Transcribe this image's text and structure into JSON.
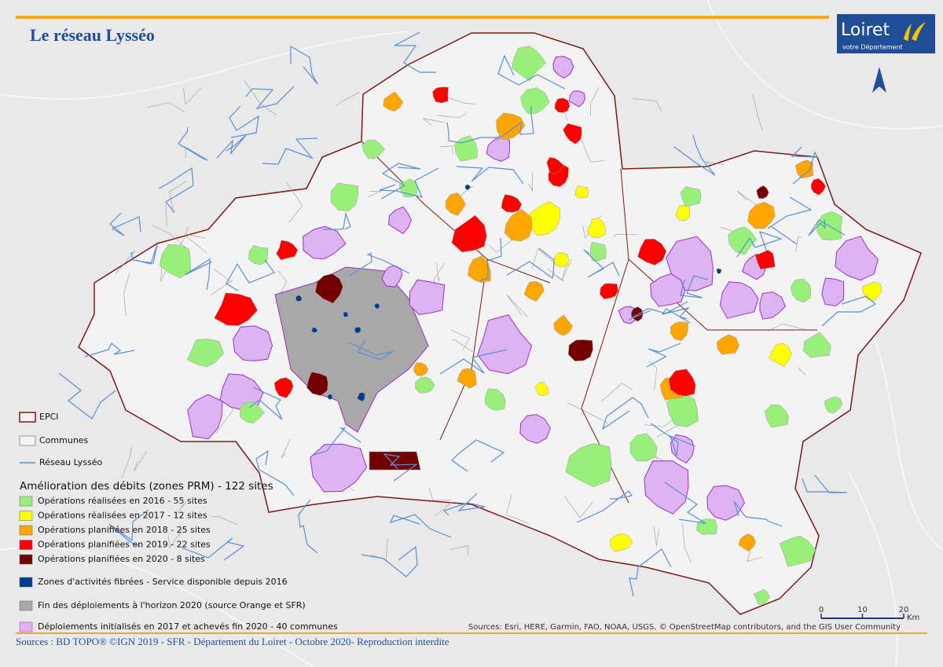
{
  "header": {
    "title": "Le réseau Lysséo",
    "logo": "Loiret",
    "logo_subtitle": "votre Département"
  },
  "legend": {
    "boundaries": [
      {
        "label": "EPCI",
        "color": "#7a1a1a"
      },
      {
        "label": "Communes",
        "color": "#9a9a9a"
      },
      {
        "label": "Réseau Lysséo",
        "color": "#5b8fd6"
      }
    ],
    "heading": "Amélioration des débits (zones PRM) - 122 sites",
    "items": [
      {
        "label": "Opérations réalisées en 2016 - 55 sites",
        "color": "#98f07a"
      },
      {
        "label": "Opérations réalisées en 2017 - 12 sites",
        "color": "#ffff00"
      },
      {
        "label": "Opérations planifiées en 2018 - 25 sites",
        "color": "#ffa500"
      },
      {
        "label": "Opérations planifiées en 2019 - 22 sites",
        "color": "#ff0000"
      },
      {
        "label": "Opérations planifiées en 2020 - 8 sites",
        "color": "#730000"
      }
    ],
    "extra": [
      {
        "label": "Zones d'activités fibrées - Service disponible depuis 2016",
        "color": "#003c8f"
      },
      {
        "label": "Fin des déploiements à l'horizon 2020 (source Orange et SFR)",
        "color": "#a8a8a8"
      },
      {
        "label": "Déploiements initialisés en 2017 et achevés fin 2020 - 40 communes",
        "color": "#deb3f2"
      }
    ]
  },
  "scale": {
    "ticks": [
      0,
      10,
      20
    ],
    "unit": "Km"
  },
  "credits": "Sources: Esri, HERE, Garmin, FAO, NOAA, USGS, © OpenStreetMap contributors, and the GIS User Community",
  "footer": "Sources : BD TOPO® ©IGN 2019 - SFR - Département du Loiret - Octobre 2020- Reproduction interdite"
}
